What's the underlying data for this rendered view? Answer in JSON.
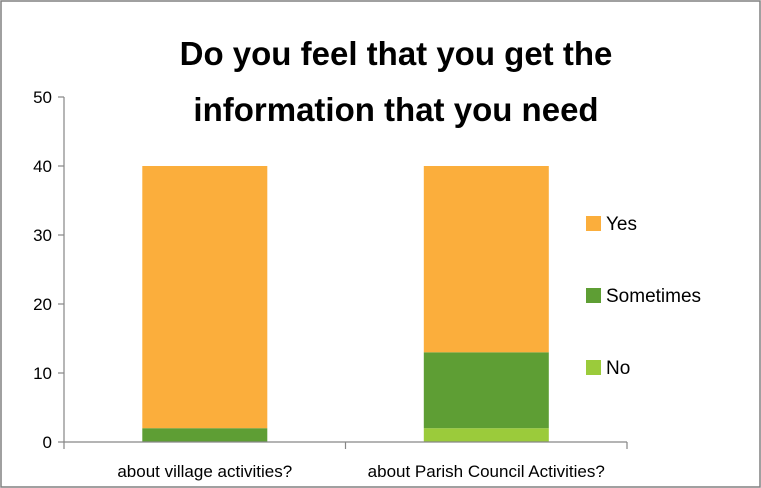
{
  "chart_data": {
    "type": "bar",
    "stacked": true,
    "title_lines": [
      "Do you feel that you  get the",
      "information that you need"
    ],
    "categories": [
      "about village activities?",
      "about Parish Council Activities?"
    ],
    "series": [
      {
        "name": "No",
        "values": [
          0,
          2
        ],
        "color": "#9BCB3B"
      },
      {
        "name": "Sometimes",
        "values": [
          2,
          11
        ],
        "color": "#5E9E34"
      },
      {
        "name": "Yes",
        "values": [
          38,
          27
        ],
        "color": "#FBAE3C"
      }
    ],
    "legend_order": [
      "Yes",
      "Sometimes",
      "No"
    ],
    "legend_position": "right",
    "ylim": [
      0,
      50
    ],
    "yticks": [
      0,
      10,
      20,
      30,
      40,
      50
    ],
    "xlabel": "",
    "ylabel": "",
    "grid": false
  },
  "colors": {
    "axis": "#868686",
    "frame": "#808080"
  }
}
